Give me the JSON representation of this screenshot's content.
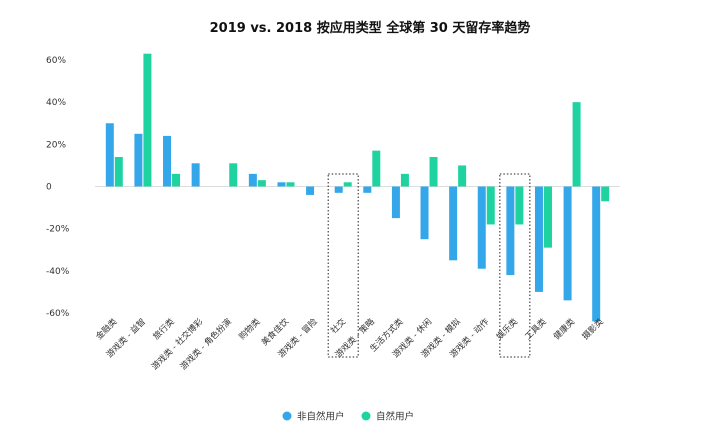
{
  "chart_data": {
    "type": "bar",
    "title": "2019 vs. 2018 按应用类型 全球第 30 天留存率趋势",
    "xlabel": "",
    "ylabel": "",
    "ylim": [
      -70,
      65
    ],
    "yticks": [
      {
        "value": 60,
        "label": "60%"
      },
      {
        "value": 40,
        "label": "40%"
      },
      {
        "value": 20,
        "label": "20%"
      },
      {
        "value": 0,
        "label": "0"
      },
      {
        "value": -20,
        "label": "-20%"
      },
      {
        "value": -40,
        "label": "-40%"
      },
      {
        "value": -60,
        "label": "-60%"
      }
    ],
    "categories": [
      "金融类",
      "游戏类 - 益智",
      "旅行类",
      "游戏类 - 社交博彩",
      "游戏类 - 角色扮演",
      "购物类",
      "美食佳饮",
      "游戏类 - 冒险",
      "社交",
      "游戏类 - 策略",
      "生活方式类",
      "游戏类 - 休闲",
      "游戏类 - 模拟",
      "游戏类 - 动作",
      "娱乐类",
      "工具类",
      "健康类",
      "摄影类"
    ],
    "series": [
      {
        "name": "非自然用户",
        "color": "#34a7ea",
        "values": [
          30,
          25,
          24,
          11,
          null,
          6,
          2,
          -4,
          -3,
          -3,
          -15,
          -25,
          -35,
          -39,
          -42,
          -50,
          -54,
          -64
        ]
      },
      {
        "name": "自然用户",
        "color": "#1fd3a0",
        "values": [
          14,
          63,
          6,
          null,
          11,
          3,
          2,
          null,
          2,
          17,
          6,
          14,
          10,
          -18,
          -18,
          -29,
          40,
          -7
        ]
      }
    ],
    "highlighted_categories": [
      "社交",
      "娱乐类"
    ],
    "grid": false,
    "legend_position": "bottom"
  }
}
